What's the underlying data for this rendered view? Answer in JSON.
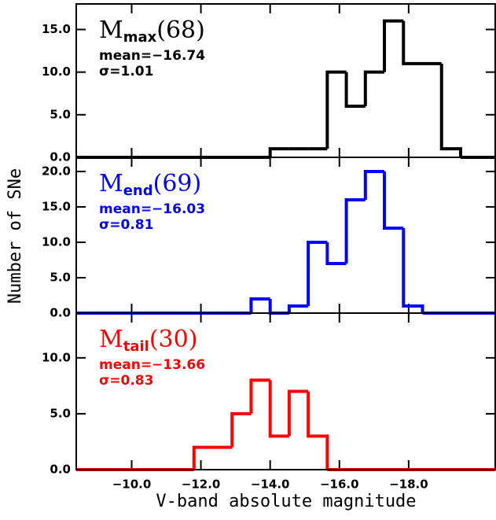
{
  "chart_data": [
    {
      "type": "histogram",
      "color": "#000000",
      "label": {
        "main": "M",
        "sub": "max",
        "count": "(68)"
      },
      "mean": "mean=−16.74",
      "sigma": "σ=1.01",
      "bins": [
        -14.0,
        -14.55,
        -15.1,
        -15.65,
        -16.2,
        -16.75,
        -17.3,
        -17.85,
        -18.4,
        -18.95,
        -19.5
      ],
      "counts": [
        1,
        1,
        1,
        10,
        6,
        10,
        16,
        11,
        11,
        1
      ],
      "xlim": [
        -8.4,
        -20.5
      ],
      "ylim": [
        0,
        18
      ],
      "yticks": [
        {
          "value": 0,
          "label": "0.0"
        },
        {
          "value": 5,
          "label": "5.0"
        },
        {
          "value": 10,
          "label": "10.0"
        },
        {
          "value": 15,
          "label": "15.0"
        }
      ]
    },
    {
      "type": "histogram",
      "color": "#0000ff",
      "label": {
        "main": "M",
        "sub": "end",
        "count": "(69)"
      },
      "mean": "mean=−16.03",
      "sigma": "σ=0.81",
      "ylabel": "Number of SNe",
      "bins": [
        -13.45,
        -14.0,
        -14.55,
        -15.1,
        -15.65,
        -16.2,
        -16.75,
        -17.3,
        -17.85,
        -18.4
      ],
      "counts": [
        2,
        0,
        1,
        10,
        7,
        16,
        20,
        12,
        1
      ],
      "xlim": [
        -8.4,
        -20.5
      ],
      "ylim": [
        0,
        22
      ],
      "yticks": [
        {
          "value": 0,
          "label": "0.0"
        },
        {
          "value": 5,
          "label": "5.0"
        },
        {
          "value": 10,
          "label": "10.0"
        },
        {
          "value": 15,
          "label": "15.0"
        },
        {
          "value": 20,
          "label": "20.0"
        }
      ]
    },
    {
      "type": "histogram",
      "color": "#ff0000",
      "label": {
        "main": "M",
        "sub": "tail",
        "count": "(30)"
      },
      "mean": "mean=−13.66",
      "sigma": "σ=0.83",
      "xlabel": "V-band absolute magnitude",
      "bins": [
        -11.8,
        -12.35,
        -12.9,
        -13.45,
        -14.0,
        -14.55,
        -15.1,
        -15.65
      ],
      "counts": [
        2,
        2,
        5,
        8,
        3,
        7,
        3
      ],
      "xlim": [
        -8.4,
        -20.5
      ],
      "ylim": [
        0,
        14
      ],
      "yticks": [
        {
          "value": 0,
          "label": "0.0"
        },
        {
          "value": 5,
          "label": "5.0"
        },
        {
          "value": 10,
          "label": "10.0"
        }
      ],
      "xticks": [
        {
          "value": -10,
          "label": "−10.0"
        },
        {
          "value": -12,
          "label": "−12.0"
        },
        {
          "value": -14,
          "label": "−14.0"
        },
        {
          "value": -16,
          "label": "−16.0"
        },
        {
          "value": -18,
          "label": "−18.0"
        }
      ]
    }
  ]
}
